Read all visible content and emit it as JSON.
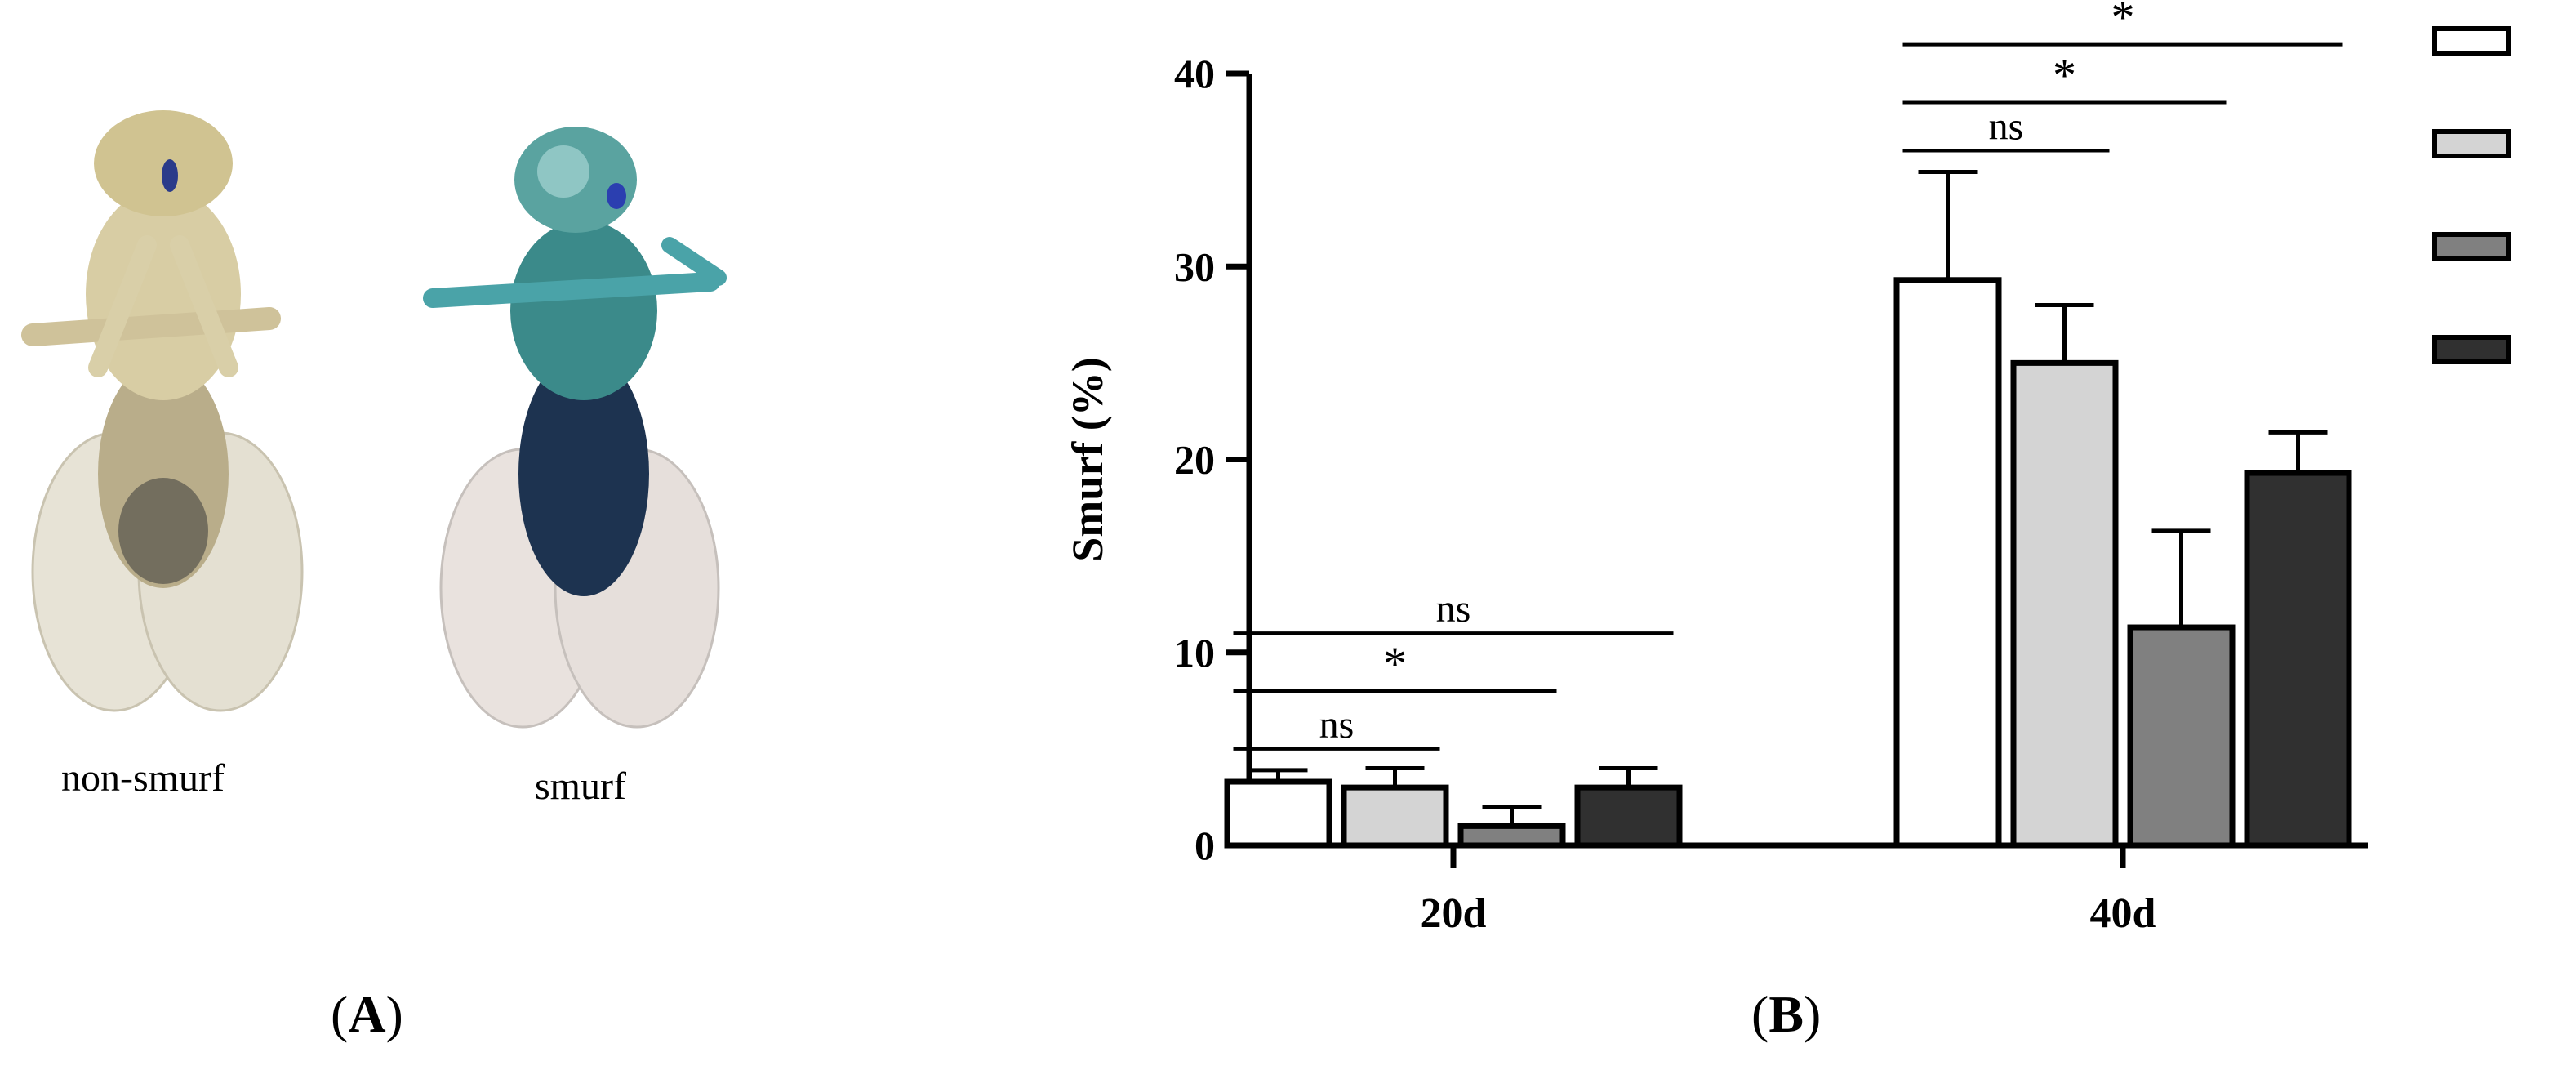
{
  "panel_a": {
    "label_open": "(",
    "label_letter": "A",
    "label_close": ")",
    "images": [
      {
        "caption": "non-smurf",
        "depicts": "fly-photo-non-smurf"
      },
      {
        "caption": "smurf",
        "depicts": "fly-photo-smurf"
      }
    ]
  },
  "panel_b": {
    "label_open": "(",
    "label_letter": "B",
    "label_close": ")"
  },
  "chart_data": {
    "type": "bar",
    "title": "",
    "xlabel": "",
    "ylabel": "Smurf (%)",
    "ylim": [
      0,
      40
    ],
    "yticks": [
      0,
      10,
      20,
      30,
      40
    ],
    "categories": [
      "20d",
      "40d"
    ],
    "grid": false,
    "legend": "top-right",
    "series": [
      {
        "color": "#ffffff",
        "values": [
          3.3,
          29.3
        ],
        "errors": [
          0.6,
          5.6
        ]
      },
      {
        "color": "#d4d4d4",
        "values": [
          3.0,
          25.0
        ],
        "errors": [
          1.0,
          3.0
        ]
      },
      {
        "color": "#808080",
        "values": [
          1.0,
          11.3
        ],
        "errors": [
          1.0,
          5.0
        ]
      },
      {
        "color": "#303030",
        "values": [
          3.0,
          19.3
        ],
        "errors": [
          1.0,
          2.1
        ]
      }
    ],
    "significance": [
      {
        "category": "20d",
        "from": 0,
        "to": 1,
        "label": "ns",
        "y": 5.0
      },
      {
        "category": "20d",
        "from": 0,
        "to": 2,
        "label": "*",
        "y": 8.0
      },
      {
        "category": "20d",
        "from": 0,
        "to": 3,
        "label": "ns",
        "y": 11.0
      },
      {
        "category": "40d",
        "from": 0,
        "to": 1,
        "label": "ns",
        "y": 36.0
      },
      {
        "category": "40d",
        "from": 0,
        "to": 2,
        "label": "*",
        "y": 38.5
      },
      {
        "category": "40d",
        "from": 0,
        "to": 3,
        "label": "*",
        "y": 41.5
      }
    ]
  }
}
